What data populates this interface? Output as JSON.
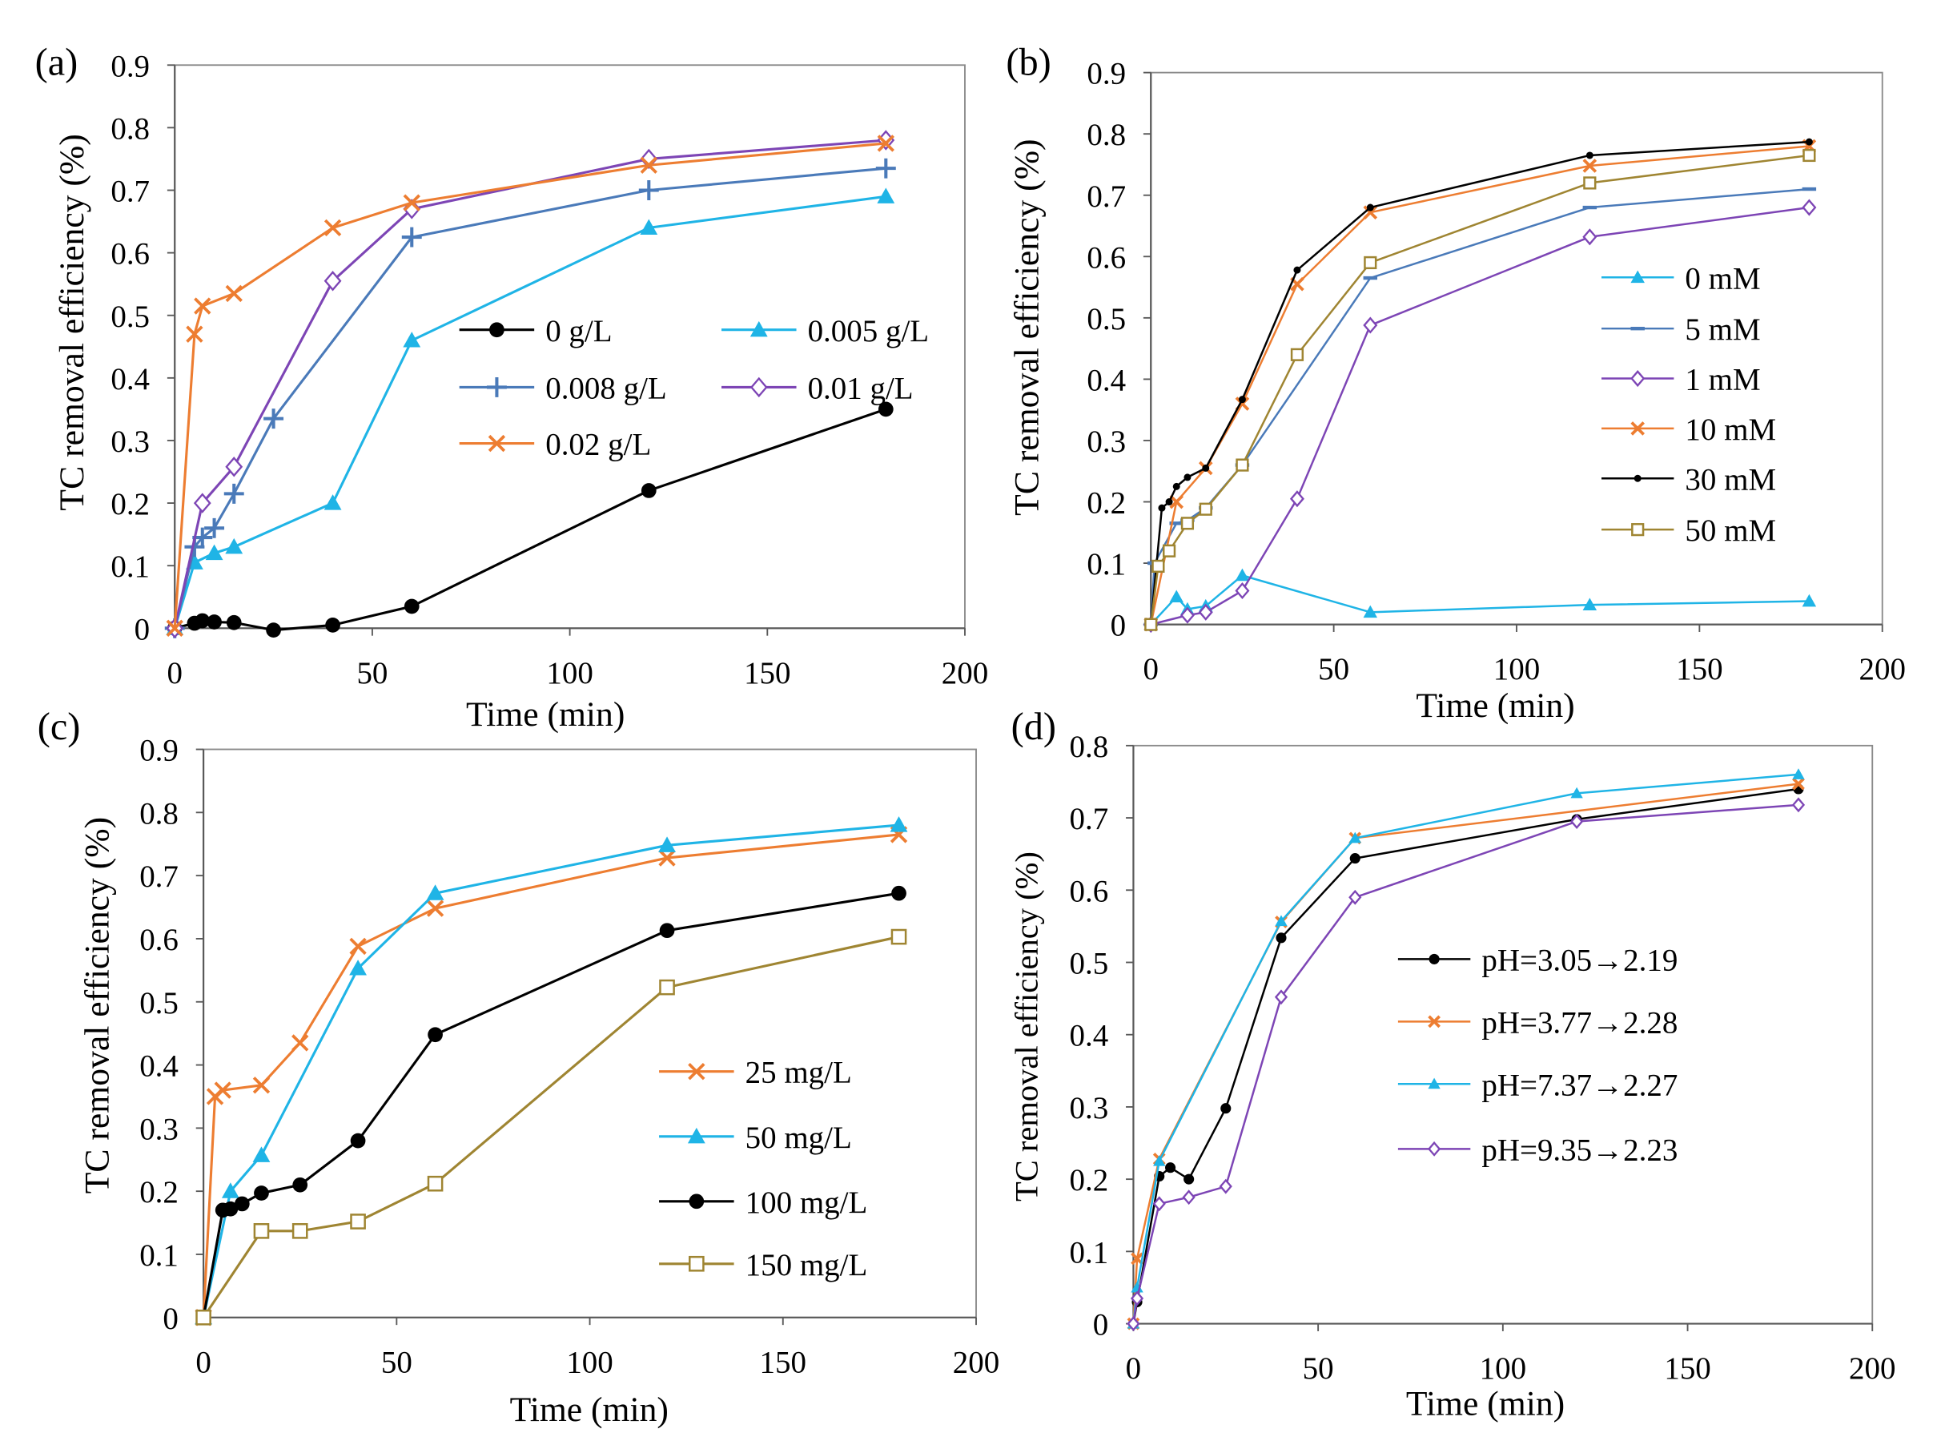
{
  "chart_data": [
    {
      "panel_label": "(a)",
      "type": "line",
      "title": "",
      "xlabel": "Time (min)",
      "ylabel": "TC removal efficiency (%)",
      "xlim": [
        0,
        200
      ],
      "ylim": [
        0,
        0.9
      ],
      "x_ticks": [
        0,
        50,
        100,
        150,
        200
      ],
      "y_ticks": [
        0,
        0.1,
        0.2,
        0.3,
        0.4,
        0.5,
        0.6,
        0.7,
        0.8,
        0.9
      ],
      "grid": false,
      "legend": "center-right",
      "series": [
        {
          "name": "0 g/L",
          "color": "#000000",
          "marker": "filled-circle",
          "x": [
            0,
            5,
            7,
            10,
            15,
            25,
            40,
            60,
            120,
            180
          ],
          "y": [
            0,
            0.008,
            0.012,
            0.01,
            0.009,
            -0.003,
            0.005,
            0.035,
            0.22,
            0.35
          ]
        },
        {
          "name": "0.005 g/L",
          "color": "#1fb4e6",
          "marker": "filled-triangle",
          "x": [
            0,
            5,
            10,
            15,
            40,
            60,
            120,
            180
          ],
          "y": [
            0,
            0.105,
            0.12,
            0.13,
            0.2,
            0.46,
            0.64,
            0.69
          ]
        },
        {
          "name": "0.008 g/L",
          "color": "#4a7ab9",
          "marker": "plus",
          "x": [
            0,
            5,
            7,
            10,
            15,
            25,
            60,
            120,
            180
          ],
          "y": [
            0,
            0.13,
            0.145,
            0.16,
            0.215,
            0.335,
            0.625,
            0.7,
            0.735
          ]
        },
        {
          "name": "0.01 g/L",
          "color": "#7d45b5",
          "marker": "open-diamond",
          "x": [
            0,
            7,
            15,
            40,
            60,
            120,
            180
          ],
          "y": [
            0,
            0.2,
            0.258,
            0.555,
            0.67,
            0.75,
            0.78
          ]
        },
        {
          "name": "0.02 g/L",
          "color": "#ed7d31",
          "marker": "cross",
          "x": [
            0,
            5,
            7,
            15,
            40,
            60,
            120,
            180
          ],
          "y": [
            0,
            0.47,
            0.515,
            0.535,
            0.64,
            0.68,
            0.74,
            0.775
          ]
        }
      ]
    },
    {
      "panel_label": "(b)",
      "type": "line",
      "title": "",
      "xlabel": "Time (min)",
      "ylabel": "TC removal efficiency (%)",
      "xlim": [
        0,
        200
      ],
      "ylim": [
        0,
        0.9
      ],
      "x_ticks": [
        0,
        50,
        100,
        150,
        200
      ],
      "y_ticks": [
        0,
        0.1,
        0.2,
        0.3,
        0.4,
        0.5,
        0.6,
        0.7,
        0.8,
        0.9
      ],
      "grid": false,
      "legend": "center-right",
      "series": [
        {
          "name": "0 mM",
          "color": "#1fb4e6",
          "marker": "filled-triangle",
          "x": [
            0,
            7,
            10,
            15,
            25,
            60,
            120,
            180
          ],
          "y": [
            0,
            0.045,
            0.025,
            0.03,
            0.08,
            0.02,
            0.032,
            0.038
          ]
        },
        {
          "name": "5 mM",
          "color": "#4a7ab9",
          "marker": "dash",
          "x": [
            0,
            1,
            7,
            10,
            15,
            25,
            60,
            120,
            180
          ],
          "y": [
            0,
            0.1,
            0.165,
            0.17,
            0.19,
            0.26,
            0.565,
            0.68,
            0.71
          ]
        },
        {
          "name": "1 mM",
          "color": "#7d45b5",
          "marker": "open-diamond",
          "x": [
            0,
            10,
            15,
            25,
            40,
            60,
            120,
            180
          ],
          "y": [
            0,
            0.015,
            0.02,
            0.055,
            0.205,
            0.488,
            0.632,
            0.68
          ]
        },
        {
          "name": "10 mM",
          "color": "#ed7d31",
          "marker": "cross",
          "x": [
            0,
            7,
            15,
            25,
            40,
            60,
            120,
            180
          ],
          "y": [
            0,
            0.2,
            0.255,
            0.36,
            0.555,
            0.672,
            0.748,
            0.78
          ]
        },
        {
          "name": "30 mM",
          "color": "#000000",
          "marker": "small-dot",
          "x": [
            0,
            3,
            5,
            7,
            10,
            15,
            25,
            40,
            60,
            120,
            180
          ],
          "y": [
            0,
            0.19,
            0.2,
            0.225,
            0.24,
            0.255,
            0.367,
            0.578,
            0.68,
            0.765,
            0.787
          ]
        },
        {
          "name": "50 mM",
          "color": "#9f8532",
          "marker": "open-square",
          "x": [
            0,
            2,
            5,
            10,
            15,
            25,
            40,
            60,
            120,
            180
          ],
          "y": [
            0,
            0.095,
            0.12,
            0.165,
            0.188,
            0.26,
            0.44,
            0.59,
            0.72,
            0.765
          ]
        }
      ]
    },
    {
      "panel_label": "(c)",
      "type": "line",
      "title": "",
      "xlabel": "Time (min)",
      "ylabel": "TC removal efficiency (%)",
      "xlim": [
        0,
        200
      ],
      "ylim": [
        0,
        0.9
      ],
      "x_ticks": [
        0,
        50,
        100,
        150,
        200
      ],
      "y_ticks": [
        0,
        0.1,
        0.2,
        0.3,
        0.4,
        0.5,
        0.6,
        0.7,
        0.8,
        0.9
      ],
      "grid": false,
      "legend": "bottom-right",
      "series": [
        {
          "name": "25 mg/L",
          "color": "#ed7d31",
          "marker": "cross",
          "x": [
            0,
            3,
            5,
            15,
            25,
            40,
            60,
            120,
            180
          ],
          "y": [
            0,
            0.35,
            0.36,
            0.368,
            0.435,
            0.588,
            0.648,
            0.728,
            0.765
          ]
        },
        {
          "name": "50 mg/L",
          "color": "#1fb4e6",
          "marker": "filled-triangle",
          "x": [
            0,
            7,
            15,
            40,
            60,
            120,
            180
          ],
          "y": [
            0,
            0.2,
            0.257,
            0.553,
            0.672,
            0.748,
            0.78
          ]
        },
        {
          "name": "100 mg/L",
          "color": "#000000",
          "marker": "filled-circle",
          "x": [
            0,
            5,
            7,
            10,
            15,
            25,
            40,
            60,
            120,
            180
          ],
          "y": [
            0,
            0.17,
            0.172,
            0.18,
            0.197,
            0.21,
            0.28,
            0.448,
            0.613,
            0.672
          ]
        },
        {
          "name": "150 mg/L",
          "color": "#9f8532",
          "marker": "open-square",
          "x": [
            0,
            15,
            25,
            40,
            60,
            120,
            180
          ],
          "y": [
            0,
            0.137,
            0.137,
            0.152,
            0.212,
            0.523,
            0.603
          ]
        }
      ]
    },
    {
      "panel_label": "(d)",
      "type": "line",
      "title": "",
      "xlabel": "Time (min)",
      "ylabel": "TC removal efficiency (%)",
      "xlim": [
        0,
        200
      ],
      "ylim": [
        0,
        0.8
      ],
      "x_ticks": [
        0,
        50,
        100,
        150,
        200
      ],
      "y_ticks": [
        0,
        0.1,
        0.2,
        0.3,
        0.4,
        0.5,
        0.6,
        0.7,
        0.8
      ],
      "grid": false,
      "legend": "center-right",
      "series": [
        {
          "name": "pH=3.05→2.19",
          "color": "#000000",
          "marker": "filled-circle",
          "x": [
            0,
            1,
            7,
            10,
            15,
            25,
            40,
            60,
            120,
            180
          ],
          "y": [
            0,
            0.03,
            0.204,
            0.216,
            0.2,
            0.298,
            0.534,
            0.644,
            0.698,
            0.74
          ]
        },
        {
          "name": "pH=3.77→2.28",
          "color": "#ed7d31",
          "marker": "cross",
          "x": [
            0,
            1,
            7,
            40,
            60,
            180
          ],
          "y": [
            0,
            0.09,
            0.228,
            0.556,
            0.672,
            0.747
          ]
        },
        {
          "name": "pH=7.37→2.27",
          "color": "#1fb4e6",
          "marker": "filled-triangle",
          "x": [
            0,
            1,
            7,
            40,
            60,
            120,
            180
          ],
          "y": [
            0,
            0.05,
            0.225,
            0.557,
            0.672,
            0.734,
            0.76
          ]
        },
        {
          "name": "pH=9.35→2.23",
          "color": "#7d45b5",
          "marker": "open-diamond",
          "x": [
            0,
            1,
            7,
            15,
            25,
            40,
            60,
            120,
            180
          ],
          "y": [
            0,
            0.035,
            0.166,
            0.175,
            0.19,
            0.452,
            0.59,
            0.695,
            0.718
          ]
        }
      ]
    }
  ]
}
